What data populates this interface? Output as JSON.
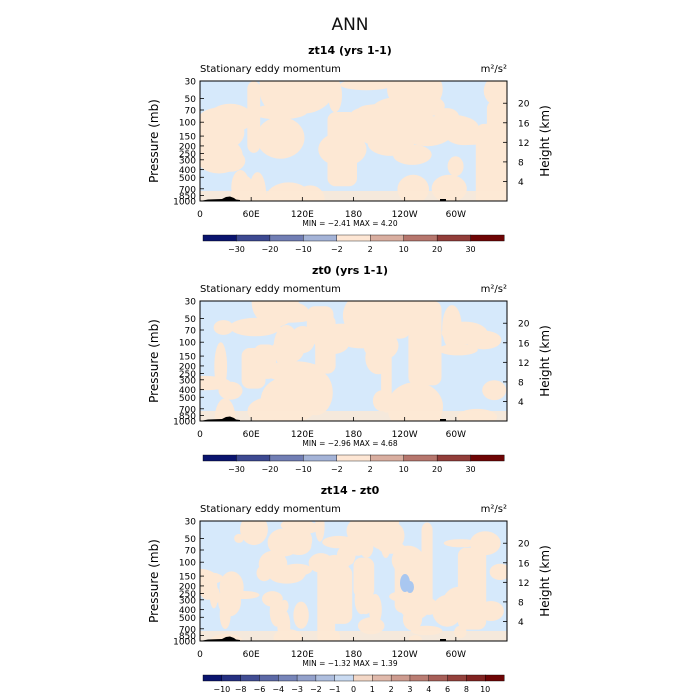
{
  "figure_title": "ANN",
  "colors": {
    "blue_fill": "#d6e9fb",
    "orange_fill": "#fde8d4",
    "mid_blue": "#a9c7f0",
    "topography": "#000000"
  },
  "chart_data": [
    {
      "type": "contour",
      "title": "zt14 (yrs 1-1)",
      "subtitle_left": "Stationary eddy momentum",
      "units": "m²/s²",
      "ylabel": "Pressure (mb)",
      "ylabel_right": "Height (km)",
      "yticks": [
        "30",
        "50",
        "70",
        "100",
        "150",
        "200",
        "250",
        "300",
        "400",
        "500",
        "700",
        "850",
        "1000"
      ],
      "yticks_right": [
        "20",
        "16",
        "12",
        "8",
        "4"
      ],
      "xticks": [
        "0",
        "60E",
        "120E",
        "180",
        "120W",
        "60W"
      ],
      "stats": {
        "min": "-2.41",
        "max": "4.20",
        "text": "MIN =   −2.41   MAX =    4.20"
      },
      "colorbar_labels": [
        "−30",
        "−20",
        "−10",
        "−2",
        "2",
        "10",
        "20",
        "30"
      ],
      "colorbar_levels": [
        -30,
        -20,
        -10,
        -2,
        2,
        10,
        20,
        30
      ]
    },
    {
      "type": "contour",
      "title": "zt0 (yrs 1-1)",
      "subtitle_left": "Stationary eddy momentum",
      "units": "m²/s²",
      "ylabel": "Pressure (mb)",
      "ylabel_right": "Height (km)",
      "yticks": [
        "30",
        "50",
        "70",
        "100",
        "150",
        "200",
        "250",
        "300",
        "400",
        "500",
        "700",
        "850",
        "1000"
      ],
      "yticks_right": [
        "20",
        "16",
        "12",
        "8",
        "4"
      ],
      "xticks": [
        "0",
        "60E",
        "120E",
        "180",
        "120W",
        "60W"
      ],
      "stats": {
        "min": "-2.96",
        "max": "4.68",
        "text": "MIN =   −2.96   MAX =    4.68"
      },
      "colorbar_labels": [
        "−30",
        "−20",
        "−10",
        "−2",
        "2",
        "10",
        "20",
        "30"
      ],
      "colorbar_levels": [
        -30,
        -20,
        -10,
        -2,
        2,
        10,
        20,
        30
      ]
    },
    {
      "type": "contour",
      "title": "zt14 - zt0",
      "subtitle_left": "Stationary eddy momentum",
      "units": "m²/s²",
      "ylabel": "Pressure (mb)",
      "ylabel_right": "Height (km)",
      "yticks": [
        "30",
        "50",
        "70",
        "100",
        "150",
        "200",
        "250",
        "300",
        "400",
        "500",
        "700",
        "850",
        "1000"
      ],
      "yticks_right": [
        "20",
        "16",
        "12",
        "8",
        "4"
      ],
      "xticks": [
        "0",
        "60E",
        "120E",
        "180",
        "120W",
        "60W"
      ],
      "stats": {
        "min": "-1.32",
        "max": "1.39",
        "text": "MIN =   −1.32   MAX =    1.39"
      },
      "colorbar_labels": [
        "−10",
        "−8",
        "−6",
        "−4",
        "−3",
        "−2",
        "−1",
        "0",
        "1",
        "2",
        "3",
        "4",
        "6",
        "8",
        "10"
      ],
      "colorbar_levels": [
        -10,
        -8,
        -6,
        -4,
        -3,
        -2,
        -1,
        0,
        1,
        2,
        3,
        4,
        6,
        8,
        10
      ]
    }
  ]
}
